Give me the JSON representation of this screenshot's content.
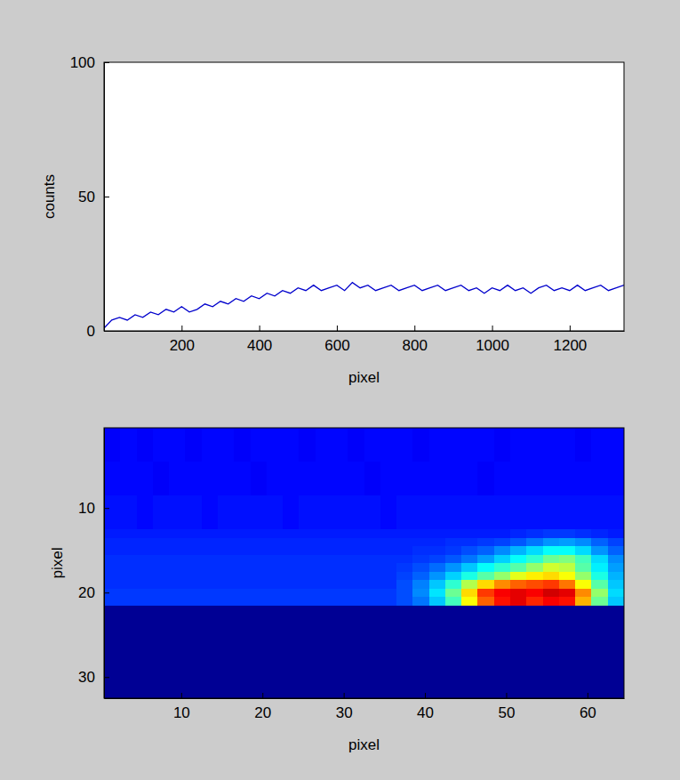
{
  "chart_data": [
    {
      "type": "line",
      "x_label": "pixel",
      "y_label": "counts",
      "color": "#0000cc",
      "grid": false,
      "xlim": [
        0,
        1340
      ],
      "xticks": [
        200,
        400,
        600,
        800,
        1000,
        1200
      ],
      "ylim": [
        0,
        100
      ],
      "yticks": [
        0,
        50,
        100
      ],
      "x": [
        0,
        20,
        40,
        60,
        80,
        100,
        120,
        140,
        160,
        180,
        200,
        220,
        240,
        260,
        280,
        300,
        320,
        340,
        360,
        380,
        400,
        420,
        440,
        460,
        480,
        500,
        520,
        540,
        560,
        580,
        600,
        620,
        640,
        660,
        680,
        700,
        720,
        740,
        760,
        780,
        800,
        820,
        840,
        860,
        880,
        900,
        920,
        940,
        960,
        980,
        1000,
        1020,
        1040,
        1060,
        1080,
        1100,
        1120,
        1140,
        1160,
        1180,
        1200,
        1220,
        1240,
        1260,
        1280,
        1300,
        1320,
        1340
      ],
      "values": [
        1,
        4,
        5,
        4,
        6,
        5,
        7,
        6,
        8,
        7,
        9,
        7,
        8,
        10,
        9,
        11,
        10,
        12,
        11,
        13,
        12,
        14,
        13,
        15,
        14,
        16,
        15,
        17,
        15,
        16,
        17,
        15,
        18,
        16,
        17,
        15,
        16,
        17,
        15,
        16,
        17,
        15,
        16,
        17,
        15,
        16,
        17,
        15,
        16,
        14,
        16,
        15,
        17,
        15,
        16,
        14,
        16,
        17,
        15,
        16,
        15,
        17,
        15,
        16,
        17,
        15,
        16,
        17
      ]
    },
    {
      "type": "heatmap",
      "x_label": "pixel",
      "y_label": "pixel",
      "color": "jet",
      "grid": false,
      "xlim": [
        0.5,
        64.5
      ],
      "xticks": [
        10,
        20,
        30,
        40,
        50,
        60
      ],
      "ylim": [
        0.5,
        32.5
      ],
      "yticks": [
        10,
        20,
        30
      ],
      "zlim": [
        0,
        100
      ],
      "x_edges": [
        0.5,
        2.5,
        4.5,
        6.5,
        8.5,
        10.5,
        12.5,
        14.5,
        16.5,
        18.5,
        20.5,
        22.5,
        24.5,
        26.5,
        28.5,
        30.5,
        32.5,
        34.5,
        36.5,
        38.5,
        40.5,
        42.5,
        44.5,
        46.5,
        48.5,
        50.5,
        52.5,
        54.5,
        56.5,
        58.5,
        60.5,
        62.5,
        64.5
      ],
      "y_edges": [
        0.5,
        4.5,
        8.5,
        12.5,
        13.5,
        14.5,
        15.5,
        16.5,
        17.5,
        18.5,
        19.5,
        20.5,
        21.5,
        32.5
      ],
      "values": [
        [
          12,
          13,
          12,
          13,
          13,
          12,
          13,
          13,
          12,
          13,
          13,
          13,
          12,
          13,
          13,
          12,
          13,
          13,
          13,
          12,
          13,
          13,
          13,
          13,
          12,
          13,
          13,
          13,
          13,
          12,
          13,
          13
        ],
        [
          13,
          13,
          13,
          12,
          13,
          13,
          13,
          13,
          13,
          12,
          13,
          13,
          13,
          13,
          13,
          13,
          12,
          13,
          13,
          13,
          13,
          13,
          13,
          12,
          13,
          13,
          13,
          13,
          13,
          13,
          13,
          13
        ],
        [
          14,
          14,
          13,
          14,
          14,
          14,
          13,
          14,
          14,
          14,
          14,
          13,
          14,
          14,
          14,
          14,
          14,
          13,
          14,
          14,
          14,
          14,
          14,
          14,
          14,
          14,
          14,
          14,
          14,
          14,
          14,
          14
        ],
        [
          15,
          15,
          15,
          15,
          15,
          15,
          15,
          15,
          15,
          15,
          15,
          15,
          15,
          15,
          15,
          15,
          15,
          15,
          15,
          15,
          15,
          15,
          15,
          15,
          15,
          16,
          17,
          18,
          18,
          17,
          16,
          15
        ],
        [
          16,
          16,
          16,
          16,
          16,
          16,
          16,
          16,
          16,
          16,
          16,
          16,
          16,
          16,
          16,
          16,
          16,
          16,
          16,
          16,
          16,
          17,
          17,
          18,
          19,
          21,
          24,
          27,
          28,
          26,
          22,
          19
        ],
        [
          16,
          16,
          16,
          16,
          16,
          16,
          16,
          16,
          16,
          16,
          16,
          16,
          16,
          16,
          16,
          16,
          16,
          16,
          16,
          17,
          17,
          18,
          20,
          22,
          26,
          30,
          34,
          38,
          38,
          34,
          27,
          22
        ],
        [
          17,
          17,
          17,
          17,
          17,
          17,
          17,
          17,
          17,
          17,
          17,
          17,
          17,
          17,
          17,
          17,
          17,
          17,
          17,
          18,
          19,
          21,
          24,
          28,
          33,
          38,
          42,
          48,
          50,
          44,
          34,
          26
        ],
        [
          17,
          17,
          17,
          17,
          17,
          17,
          17,
          17,
          17,
          17,
          17,
          17,
          17,
          17,
          17,
          17,
          17,
          17,
          18,
          20,
          23,
          27,
          32,
          38,
          42,
          46,
          52,
          58,
          56,
          46,
          36,
          28
        ],
        [
          17,
          17,
          17,
          17,
          17,
          17,
          17,
          17,
          17,
          17,
          17,
          17,
          17,
          17,
          17,
          17,
          17,
          17,
          19,
          22,
          27,
          33,
          40,
          46,
          52,
          60,
          64,
          66,
          62,
          52,
          40,
          30
        ],
        [
          17,
          17,
          17,
          17,
          17,
          17,
          17,
          17,
          17,
          17,
          17,
          17,
          17,
          17,
          17,
          17,
          17,
          17,
          20,
          25,
          32,
          42,
          55,
          66,
          74,
          78,
          80,
          82,
          76,
          62,
          46,
          32
        ],
        [
          18,
          18,
          18,
          18,
          18,
          18,
          18,
          18,
          18,
          18,
          18,
          18,
          18,
          18,
          18,
          18,
          18,
          18,
          20,
          26,
          35,
          48,
          66,
          82,
          88,
          90,
          88,
          92,
          90,
          74,
          52,
          34
        ],
        [
          18,
          18,
          18,
          18,
          18,
          18,
          18,
          18,
          18,
          18,
          18,
          18,
          18,
          18,
          18,
          18,
          18,
          18,
          20,
          24,
          32,
          44,
          62,
          78,
          86,
          90,
          84,
          88,
          86,
          70,
          48,
          32
        ],
        [
          2,
          2,
          2,
          2,
          2,
          2,
          2,
          2,
          2,
          2,
          2,
          2,
          2,
          2,
          2,
          2,
          2,
          2,
          2,
          2,
          2,
          2,
          2,
          2,
          2,
          2,
          2,
          2,
          2,
          2,
          2,
          2
        ]
      ]
    }
  ]
}
